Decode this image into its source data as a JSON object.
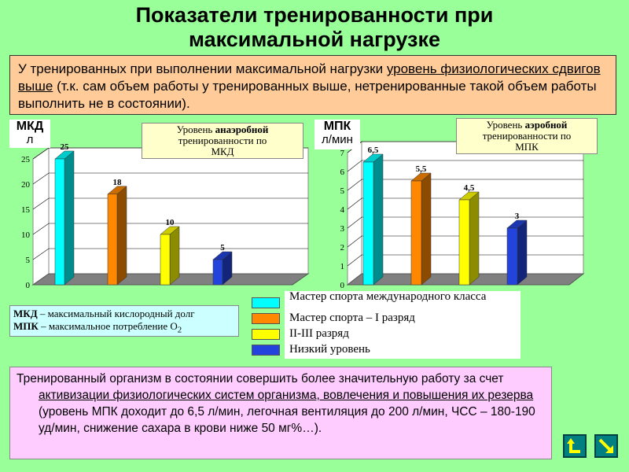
{
  "title": {
    "line1": "Показатели тренированности при",
    "line2": "максимальной нагрузке"
  },
  "top_text": {
    "part1": "У тренированных при выполнении максимальной нагрузки ",
    "underlined": "уровень физиологических сдвигов выше",
    "part2": " (т.к. сам объем работы у тренированных выше, нетренированные такой объем работы выполнить не в состоянии)."
  },
  "left_unit": {
    "line1": "МКД",
    "line2": "л"
  },
  "right_unit": {
    "line1": "МПК",
    "line2": "л/мин"
  },
  "left_note": {
    "line1": "Уровень ",
    "bold": "анаэробной",
    "line2": "тренированности по",
    "line3": "МКД"
  },
  "right_note": {
    "line1": "Уровень ",
    "bold": "аэробной",
    "line2": "тренированности по",
    "line3": "МПК"
  },
  "definitions": {
    "mkd_abbr": "МКД",
    "mkd_text": " – максимальный кислородный долг",
    "mpk_abbr": "МПК",
    "mpk_text": " – максимальное потребление О",
    "mpk_sub": "2"
  },
  "legend": [
    {
      "label": "Мастер спорта международного класса",
      "color": "#00ffff"
    },
    {
      "label": "Мастер спорта – I разряд",
      "color": "#ff8800"
    },
    {
      "label": "II-III разряд",
      "color": "#ffff00"
    },
    {
      "label": "Низкий уровень",
      "color": "#2244dd"
    }
  ],
  "bottom_text": {
    "part1": "Тренированный организм в состоянии совершить более значительную работу за счет ",
    "underlined": "активизации физиологических систем организма, вовлечения и повышения их резерва",
    "part2": " (уровень МПК доходит до 6,5 л/мин, легочная вентиляция до 200 л/мин, ЧСС – 180-190 уд/мин, снижение сахара в крови ниже 50 мг%…)."
  },
  "chart_data": [
    {
      "type": "bar",
      "categories": [
        "Мастер спорта международного класса",
        "Мастер спорта – I разряд",
        "II-III разряд",
        "Низкий уровень"
      ],
      "values": [
        25,
        18,
        10,
        5
      ],
      "data_labels": [
        "25",
        "18",
        "10",
        "5"
      ],
      "ylim": [
        0,
        25
      ],
      "yticks": [
        "0",
        "5",
        "10",
        "15",
        "20",
        "25"
      ],
      "ylabel": "МКД л",
      "colors": [
        "#00ffff",
        "#ff8800",
        "#ffff00",
        "#2244dd"
      ],
      "grid": true
    },
    {
      "type": "bar",
      "categories": [
        "Мастер спорта международного класса",
        "Мастер спорта – I разряд",
        "II-III разряд",
        "Низкий уровень"
      ],
      "values": [
        6.5,
        5.5,
        4.5,
        3
      ],
      "data_labels": [
        "6,5",
        "5,5",
        "4,5",
        "3"
      ],
      "ylim": [
        0,
        7
      ],
      "yticks": [
        "0",
        "1",
        "2",
        "3",
        "4",
        "5",
        "6",
        "7"
      ],
      "ylabel": "МПК л/мин",
      "colors": [
        "#00ffff",
        "#ff8800",
        "#ffff00",
        "#2244dd"
      ],
      "grid": true
    }
  ],
  "nav": {
    "back_icon": "return-arrow-icon",
    "next_icon": "next-arrow-icon"
  }
}
